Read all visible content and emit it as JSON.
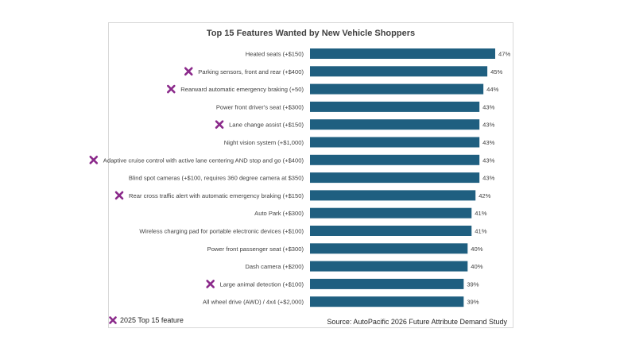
{
  "chart_data": {
    "type": "bar",
    "orientation": "horizontal",
    "title": "Top 15 Features Wanted by New Vehicle Shoppers",
    "categories": [
      "Heated seats (+$150)",
      "Parking sensors, front and rear (+$400)",
      "Rearward automatic emergency braking (+50)",
      "Power front driver's seat (+$300)",
      "Lane change assist (+$150)",
      "Night vision system (+$1,000)",
      "Adaptive cruise control with active lane centering AND stop and go (+$400)",
      "Blind spot cameras (+$100, requires 360 degree camera at $350)",
      "Rear cross traffic alert with automatic emergency braking (+$150)",
      "Auto Park (+$300)",
      "Wireless charging pad for portable electronic devices (+$100)",
      "Power front passenger seat (+$300)",
      "Dash camera (+$200)",
      "Large animal detection (+$100)",
      "All wheel drive (AWD) / 4x4 (+$2,000)"
    ],
    "values": [
      47,
      45,
      44,
      43,
      43,
      43,
      43,
      43,
      42,
      41,
      41,
      40,
      40,
      39,
      39
    ],
    "value_labels": [
      "47%",
      "45%",
      "44%",
      "43%",
      "43%",
      "43%",
      "43%",
      "43%",
      "42%",
      "41%",
      "41%",
      "40%",
      "40%",
      "39%",
      "39%"
    ],
    "top15_2025": [
      false,
      true,
      true,
      false,
      true,
      false,
      true,
      false,
      true,
      false,
      false,
      false,
      false,
      true,
      false
    ],
    "xlim": [
      0,
      47
    ],
    "bar_color": "#1f5f80",
    "marker_color": "#8b2a8b",
    "grid": false,
    "legend": "bottom-left"
  },
  "footer": {
    "legend_label": "2025 Top 15 feature",
    "source": "Source: AutoPacific 2026 Future Attribute Demand Study"
  }
}
